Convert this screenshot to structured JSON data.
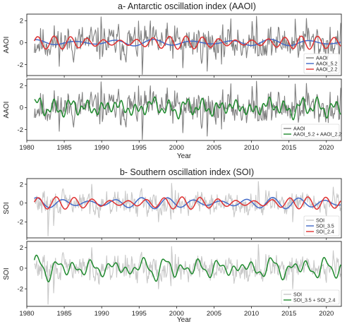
{
  "chart_data": [
    {
      "type": "line",
      "title": "a- Antarctic oscillation index (AAOI)",
      "ylabel": "AAOI",
      "xlabel": "",
      "xlim": [
        1980,
        2022
      ],
      "ylim": [
        -3.0,
        2.6
      ],
      "yticks": [
        -2,
        0,
        2
      ],
      "xticks": [
        1980,
        1985,
        1990,
        1995,
        2000,
        2005,
        2010,
        2015,
        2020
      ],
      "show_xticklabels": false,
      "grid": false,
      "legend_position": "bottom-right",
      "series": [
        {
          "name": "AAOI",
          "color": "#808080",
          "role": "raw",
          "amp": 1.05,
          "seed": 11,
          "spikes": [
            [
              1989.9,
              2.35
            ],
            [
              1995.4,
              -2.9
            ],
            [
              2000.8,
              -2.3
            ],
            [
              2004.1,
              -2.6
            ],
            [
              2010.7,
              2.4
            ],
            [
              2015.8,
              2.15
            ],
            [
              2017.3,
              2.2
            ]
          ]
        },
        {
          "name": "AAOI_5.2",
          "color": "#4169c8",
          "role": "smooth",
          "period": 5.2,
          "amp": 0.28,
          "phase": 1.2
        },
        {
          "name": "AAOI_2.2",
          "color": "#e03030",
          "role": "smooth",
          "period": 2.2,
          "amp": 0.55,
          "phase": 0.3
        }
      ]
    },
    {
      "type": "line",
      "title": "",
      "ylabel": "AAOI",
      "xlabel": "Year",
      "xlim": [
        1980,
        2022
      ],
      "ylim": [
        -3.0,
        2.6
      ],
      "yticks": [
        -2,
        0,
        2
      ],
      "xticks": [
        1980,
        1985,
        1990,
        1995,
        2000,
        2005,
        2010,
        2015,
        2020
      ],
      "show_xticklabels": true,
      "grid": false,
      "legend_position": "bottom-right",
      "series": [
        {
          "name": "AAOI",
          "color": "#808080",
          "role": "raw",
          "amp": 1.05,
          "seed": 11,
          "spikes": [
            [
              1989.9,
              2.35
            ],
            [
              1995.4,
              -2.9
            ],
            [
              2000.8,
              -2.3
            ],
            [
              2004.1,
              -2.6
            ],
            [
              2010.7,
              2.4
            ],
            [
              2015.8,
              2.15
            ],
            [
              2017.3,
              2.2
            ]
          ]
        },
        {
          "name": "AAOI_5.2 + AAOI_2.2",
          "color": "#1f8a2e",
          "role": "sum",
          "parts": [
            [
              5.2,
              0.28,
              1.2
            ],
            [
              2.2,
              0.55,
              0.3
            ]
          ],
          "extra": [
            [
              0.9,
              0.35,
              2.0
            ]
          ]
        }
      ]
    },
    {
      "type": "line",
      "title": "b- Southern oscillation index (SOI)",
      "ylabel": "SOI",
      "xlabel": "",
      "xlim": [
        1980,
        2022
      ],
      "ylim": [
        -3.7,
        2.6
      ],
      "yticks": [
        -2,
        0,
        2
      ],
      "xticks": [
        1980,
        1985,
        1990,
        1995,
        2000,
        2005,
        2010,
        2015,
        2020
      ],
      "show_xticklabels": false,
      "grid": false,
      "legend_position": "bottom-right",
      "series": [
        {
          "name": "SOI",
          "color": "#c8c8c8",
          "role": "raw",
          "amp": 0.8,
          "seed": 29,
          "spikes": [
            [
              1982.8,
              -3.5
            ],
            [
              1983.6,
              -2.4
            ],
            [
              1997.6,
              -2.0
            ],
            [
              2015.5,
              -2.0
            ],
            [
              1988.7,
              2.0
            ],
            [
              1999.3,
              2.1
            ],
            [
              2010.9,
              2.3
            ],
            [
              2020.9,
              1.7
            ]
          ]
        },
        {
          "name": "SOI_3.5",
          "color": "#4169c8",
          "role": "smooth",
          "period": 3.5,
          "amp": 0.55,
          "phase": 1.0
        },
        {
          "name": "SOI_2.4",
          "color": "#e03030",
          "role": "smooth",
          "period": 2.4,
          "amp": 0.6,
          "phase": 0.2
        }
      ]
    },
    {
      "type": "line",
      "title": "",
      "ylabel": "SOI",
      "xlabel": "Year",
      "xlim": [
        1980,
        2022
      ],
      "ylim": [
        -3.7,
        2.6
      ],
      "yticks": [
        -2,
        0,
        2
      ],
      "xticks": [
        1980,
        1985,
        1990,
        1995,
        2000,
        2005,
        2010,
        2015,
        2020
      ],
      "show_xticklabels": true,
      "grid": false,
      "legend_position": "bottom-right",
      "series": [
        {
          "name": "SOI",
          "color": "#c8c8c8",
          "role": "raw",
          "amp": 0.8,
          "seed": 29,
          "spikes": [
            [
              1982.8,
              -3.5
            ],
            [
              1983.6,
              -2.4
            ],
            [
              1997.6,
              -2.0
            ],
            [
              2015.5,
              -2.0
            ],
            [
              1988.7,
              2.0
            ],
            [
              1999.3,
              2.1
            ],
            [
              2010.9,
              2.3
            ],
            [
              2020.9,
              1.7
            ]
          ]
        },
        {
          "name": "SOI_3.5 + SOI_2.4",
          "color": "#1f8a2e",
          "role": "sum",
          "parts": [
            [
              3.5,
              0.55,
              1.0
            ],
            [
              2.4,
              0.6,
              0.2
            ]
          ],
          "extra": [
            [
              1.2,
              0.3,
              0.7
            ]
          ]
        }
      ]
    }
  ]
}
